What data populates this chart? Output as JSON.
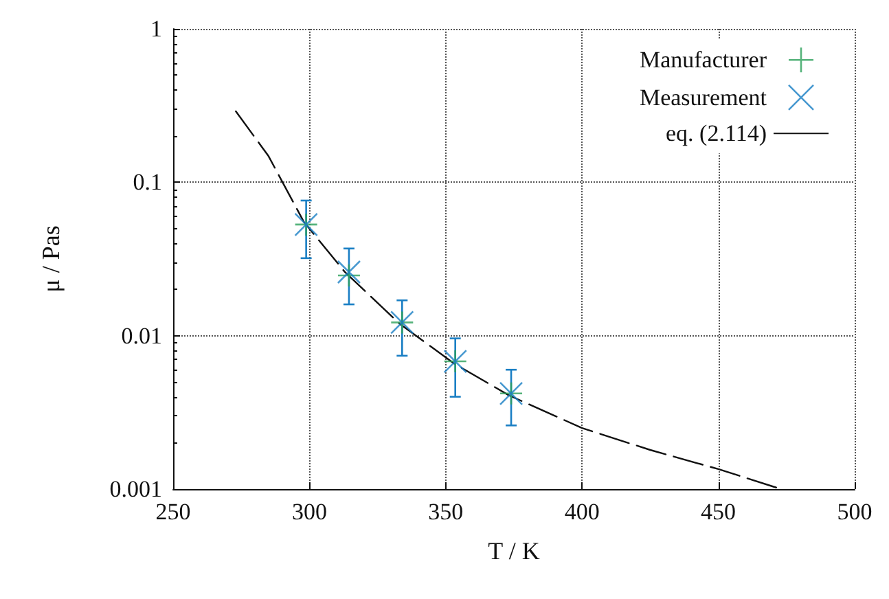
{
  "chart_data": {
    "type": "scatter",
    "xlabel": "T / K",
    "ylabel": "μ / Pas",
    "xlim": [
      250,
      500
    ],
    "xticks": [
      250,
      300,
      350,
      400,
      450,
      500
    ],
    "ylim": [
      0.001,
      1
    ],
    "yticks": [
      0.001,
      0.01,
      0.1,
      1
    ],
    "log": "y",
    "grid": true,
    "legend": "top right",
    "series": [
      {
        "name": "Manufacturer",
        "color": "#2ca05a",
        "x": [
          298.8,
          314.5,
          334,
          353.5,
          374
        ],
        "values": [
          0.053,
          0.0247,
          0.0122,
          0.0068,
          0.0042
        ]
      },
      {
        "name": "Measurement",
        "marker": "cross",
        "color": "#1a7fc4",
        "x": [
          298.8,
          314.5,
          334,
          353.5,
          374
        ],
        "values": [
          0.053,
          0.026,
          0.0122,
          0.0068,
          0.0042
        ],
        "errors": [
          [
            0.032,
            0.076
          ],
          [
            0.016,
            0.037
          ],
          [
            0.0074,
            0.017
          ],
          [
            0.004,
            0.0096
          ],
          [
            0.0026,
            0.006
          ]
        ]
      },
      {
        "name": "eq. (2.114)",
        "type": "line",
        "marker": "none",
        "line_style": "dashed",
        "color": "#111111",
        "x": [
          273,
          285,
          298,
          313,
          333,
          353,
          373,
          400,
          425,
          450,
          473
        ],
        "values": [
          0.29,
          0.148,
          0.055,
          0.026,
          0.012,
          0.0066,
          0.0041,
          0.0025,
          0.0018,
          0.00135,
          0.001
        ]
      }
    ]
  }
}
